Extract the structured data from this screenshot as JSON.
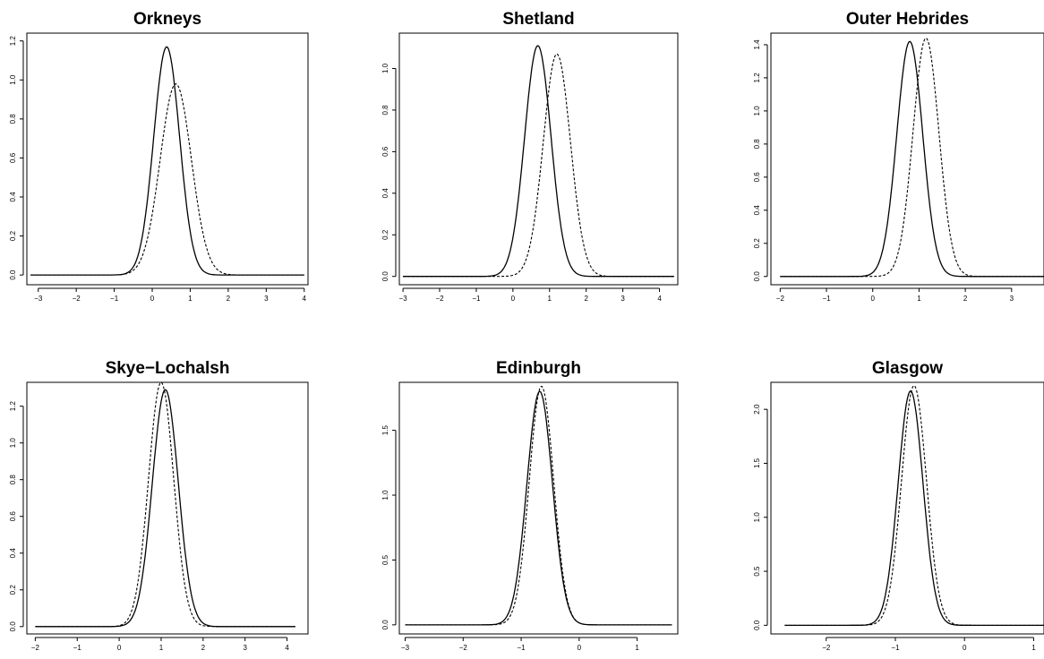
{
  "chart_data": [
    {
      "type": "line",
      "title": "Orkneys",
      "xlim": [
        -3.3,
        4.1
      ],
      "ylim": [
        -0.05,
        1.24
      ],
      "xticks": [
        -3,
        -2,
        -1,
        0,
        1,
        2,
        3,
        4
      ],
      "xtick_labels": [
        "−3",
        "−2",
        "−1",
        "0",
        "1",
        "2",
        "3",
        "4"
      ],
      "yticks": [
        0.0,
        0.2,
        0.4,
        0.6,
        0.8,
        1.0,
        1.2
      ],
      "ytick_labels": [
        "0.0",
        "0.2",
        "0.4",
        "0.6",
        "0.8",
        "1.0",
        "1.2"
      ],
      "series": [
        {
          "style": "solid",
          "x_range": [
            -3.2,
            4.0
          ],
          "peak_x": 0.38,
          "peak_y": 1.17,
          "sd": 0.34
        },
        {
          "style": "dashed",
          "x_range": [
            -3.2,
            4.0
          ],
          "peak_x": 0.62,
          "peak_y": 0.98,
          "sd": 0.41
        }
      ]
    },
    {
      "type": "line",
      "title": "Shetland",
      "xlim": [
        -3.1,
        4.5
      ],
      "ylim": [
        -0.04,
        1.17
      ],
      "xticks": [
        -3,
        -2,
        -1,
        0,
        1,
        2,
        3,
        4
      ],
      "xtick_labels": [
        "−3",
        "−2",
        "−1",
        "0",
        "1",
        "2",
        "3",
        "4"
      ],
      "yticks": [
        0.0,
        0.2,
        0.4,
        0.6,
        0.8,
        1.0
      ],
      "ytick_labels": [
        "0.0",
        "0.2",
        "0.4",
        "0.6",
        "0.8",
        "1.0"
      ],
      "series": [
        {
          "style": "solid",
          "x_range": [
            -3.0,
            4.4
          ],
          "peak_x": 0.68,
          "peak_y": 1.11,
          "sd": 0.36
        },
        {
          "style": "dashed",
          "x_range": [
            -3.0,
            4.4
          ],
          "peak_x": 1.2,
          "peak_y": 1.07,
          "sd": 0.37
        }
      ]
    },
    {
      "type": "line",
      "title": "Outer Hebrides",
      "xlim": [
        -2.2,
        3.7
      ],
      "ylim": [
        -0.05,
        1.47
      ],
      "xticks": [
        -2,
        -1,
        0,
        1,
        2,
        3
      ],
      "xtick_labels": [
        "−2",
        "−1",
        "0",
        "1",
        "2",
        "3"
      ],
      "yticks": [
        0.0,
        0.2,
        0.4,
        0.6,
        0.8,
        1.0,
        1.2,
        1.4
      ],
      "ytick_labels": [
        "0.0",
        "0.2",
        "0.4",
        "0.6",
        "0.8",
        "1.0",
        "1.2",
        "1.4"
      ],
      "series": [
        {
          "style": "solid",
          "x_range": [
            -2.0,
            3.8
          ],
          "peak_x": 0.8,
          "peak_y": 1.42,
          "sd": 0.28
        },
        {
          "style": "dashed",
          "x_range": [
            -2.0,
            3.8
          ],
          "peak_x": 1.15,
          "peak_y": 1.44,
          "sd": 0.28
        }
      ]
    },
    {
      "type": "line",
      "title": "Skye−Lochalsh",
      "xlim": [
        -2.2,
        4.5
      ],
      "ylim": [
        -0.04,
        1.33
      ],
      "xticks": [
        -2,
        -1,
        0,
        1,
        2,
        3,
        4
      ],
      "xtick_labels": [
        "−2",
        "−1",
        "0",
        "1",
        "2",
        "3",
        "4"
      ],
      "yticks": [
        0.0,
        0.2,
        0.4,
        0.6,
        0.8,
        1.0,
        1.2
      ],
      "ytick_labels": [
        "0.0",
        "0.2",
        "0.4",
        "0.6",
        "0.8",
        "1.0",
        "1.2"
      ],
      "series": [
        {
          "style": "solid",
          "x_range": [
            -2.0,
            4.2
          ],
          "peak_x": 1.1,
          "peak_y": 1.29,
          "sd": 0.31
        },
        {
          "style": "dashed",
          "x_range": [
            -2.0,
            4.2
          ],
          "peak_x": 1.0,
          "peak_y": 1.33,
          "sd": 0.3
        }
      ]
    },
    {
      "type": "line",
      "title": "Edinburgh",
      "xlim": [
        -3.1,
        1.7
      ],
      "ylim": [
        -0.07,
        1.87
      ],
      "xticks": [
        -3,
        -2,
        -1,
        0,
        1
      ],
      "xtick_labels": [
        "−3",
        "−2",
        "−1",
        "0",
        "1"
      ],
      "yticks": [
        0.0,
        0.5,
        1.0,
        1.5
      ],
      "ytick_labels": [
        "0.0",
        "0.5",
        "1.0",
        "1.5"
      ],
      "series": [
        {
          "style": "solid",
          "x_range": [
            -3.0,
            1.6
          ],
          "peak_x": -0.68,
          "peak_y": 1.8,
          "sd": 0.22
        },
        {
          "style": "dashed",
          "x_range": [
            -3.0,
            1.6
          ],
          "peak_x": -0.65,
          "peak_y": 1.84,
          "sd": 0.21
        }
      ]
    },
    {
      "type": "line",
      "title": "Glasgow",
      "xlim": [
        -2.8,
        1.15
      ],
      "ylim": [
        -0.08,
        2.25
      ],
      "xticks": [
        -2,
        -1,
        0,
        1
      ],
      "xtick_labels": [
        "−2",
        "−1",
        "0",
        "1"
      ],
      "yticks": [
        0.0,
        0.5,
        1.0,
        1.5,
        2.0
      ],
      "ytick_labels": [
        "0.0",
        "0.5",
        "1.0",
        "1.5",
        "2.0"
      ],
      "series": [
        {
          "style": "solid",
          "x_range": [
            -2.6,
            1.2
          ],
          "peak_x": -0.78,
          "peak_y": 2.17,
          "sd": 0.18
        },
        {
          "style": "dashed",
          "x_range": [
            -2.6,
            1.2
          ],
          "peak_x": -0.73,
          "peak_y": 2.22,
          "sd": 0.18
        }
      ]
    }
  ]
}
